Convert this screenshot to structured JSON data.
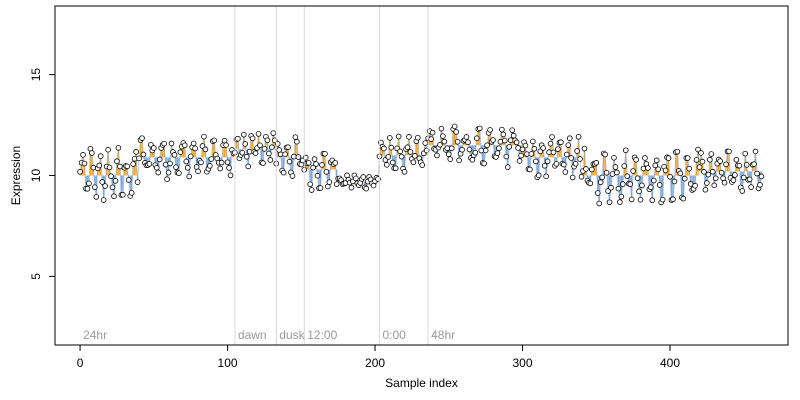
{
  "chart_data": {
    "type": "line",
    "xlabel": "Sample index",
    "ylabel": "Expression",
    "xlim": [
      -17,
      480
    ],
    "ylim": [
      1.6,
      18.4
    ],
    "x_ticks": [
      0,
      100,
      200,
      300,
      400
    ],
    "y_ticks": [
      5,
      10,
      15
    ],
    "grid": false,
    "annotations": [
      {
        "label": "24hr",
        "x": 0
      },
      {
        "label": "dawn",
        "x": 105
      },
      {
        "label": "dusk",
        "x": 133
      },
      {
        "label": "12:00",
        "x": 152
      },
      {
        "label": "0:00",
        "x": 203
      },
      {
        "label": "48hr",
        "x": 236
      }
    ],
    "vlines": [
      105,
      133,
      152,
      203,
      236
    ],
    "segments": [
      {
        "x_start": 0,
        "x_end": 40,
        "base": 10.0,
        "amp": 1.0,
        "period": 6
      },
      {
        "x_start": 40,
        "x_end": 105,
        "base": 10.9,
        "amp": 0.7,
        "period": 7
      },
      {
        "x_start": 105,
        "x_end": 133,
        "base": 11.3,
        "amp": 0.55,
        "period": 5
      },
      {
        "x_start": 133,
        "x_end": 152,
        "base": 10.9,
        "amp": 0.7,
        "period": 6
      },
      {
        "x_start": 152,
        "x_end": 175,
        "base": 10.3,
        "amp": 0.7,
        "period": 6
      },
      {
        "x_start": 175,
        "x_end": 203,
        "base": 9.7,
        "amp": 0.25,
        "period": 5
      },
      {
        "x_start": 203,
        "x_end": 236,
        "base": 11.0,
        "amp": 0.65,
        "period": 6
      },
      {
        "x_start": 236,
        "x_end": 300,
        "base": 11.5,
        "amp": 0.7,
        "period": 8
      },
      {
        "x_start": 300,
        "x_end": 340,
        "base": 10.9,
        "amp": 0.7,
        "period": 6
      },
      {
        "x_start": 340,
        "x_end": 420,
        "base": 10.0,
        "amp": 0.9,
        "period": 7
      },
      {
        "x_start": 420,
        "x_end": 462,
        "base": 10.2,
        "amp": 0.7,
        "period": 6
      }
    ],
    "n_points": 462,
    "colors": {
      "above": "#f5a623",
      "below": "#7fa6d6",
      "point_fill": "#ffffff",
      "point_stroke": "#000000",
      "vline": "#d9d9d9"
    }
  }
}
